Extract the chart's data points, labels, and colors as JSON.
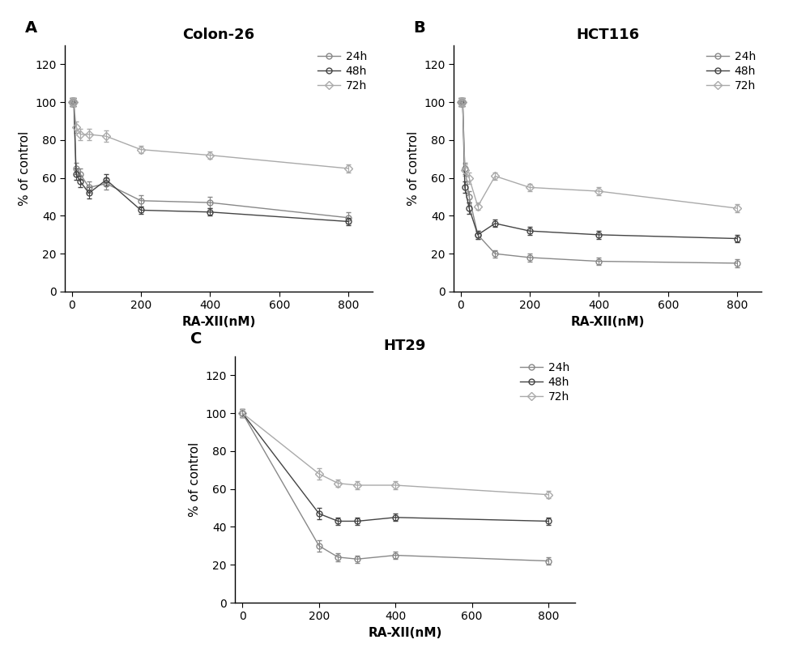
{
  "panels": [
    {
      "label": "A",
      "title": "Colon-26",
      "xlabel": "RA-XII(nM)",
      "ylabel": "% of control",
      "xlim": [
        -20,
        870
      ],
      "ylim": [
        0,
        130
      ],
      "xticks": [
        0,
        200,
        400,
        600,
        800
      ],
      "yticks": [
        0,
        20,
        40,
        60,
        80,
        100,
        120
      ],
      "series": [
        {
          "label": "24h",
          "x": [
            0,
            6.25,
            12.5,
            25,
            50,
            100,
            200,
            400,
            800
          ],
          "y": [
            100,
            100,
            65,
            62,
            55,
            57,
            48,
            47,
            39
          ],
          "yerr": [
            2,
            2,
            3,
            3,
            3,
            3,
            3,
            3,
            3
          ],
          "marker": "o",
          "markersize": 5,
          "color": "#888888",
          "linestyle": "-",
          "fillstyle": "none"
        },
        {
          "label": "48h",
          "x": [
            0,
            6.25,
            12.5,
            25,
            50,
            100,
            200,
            400,
            800
          ],
          "y": [
            100,
            100,
            62,
            58,
            52,
            59,
            43,
            42,
            37
          ],
          "yerr": [
            2,
            2,
            3,
            3,
            3,
            3,
            2,
            2,
            2
          ],
          "marker": "o",
          "markersize": 5,
          "color": "#444444",
          "linestyle": "-",
          "fillstyle": "none"
        },
        {
          "label": "72h",
          "x": [
            0,
            6.25,
            12.5,
            25,
            50,
            100,
            200,
            400,
            800
          ],
          "y": [
            100,
            100,
            87,
            83,
            83,
            82,
            75,
            72,
            65
          ],
          "yerr": [
            2,
            2,
            3,
            3,
            3,
            3,
            2,
            2,
            2
          ],
          "marker": "D",
          "markersize": 5,
          "color": "#aaaaaa",
          "linestyle": "-",
          "fillstyle": "none"
        }
      ]
    },
    {
      "label": "B",
      "title": "HCT116",
      "xlabel": "RA-XII(nM)",
      "ylabel": "% of control",
      "xlim": [
        -20,
        870
      ],
      "ylim": [
        0,
        130
      ],
      "xticks": [
        0,
        200,
        400,
        600,
        800
      ],
      "yticks": [
        0,
        20,
        40,
        60,
        80,
        100,
        120
      ],
      "series": [
        {
          "label": "24h",
          "x": [
            0,
            6.25,
            12.5,
            25,
            50,
            100,
            200,
            400,
            800
          ],
          "y": [
            100,
            100,
            65,
            50,
            30,
            20,
            18,
            16,
            15
          ],
          "yerr": [
            2,
            2,
            3,
            3,
            2,
            2,
            2,
            2,
            2
          ],
          "marker": "o",
          "markersize": 5,
          "color": "#888888",
          "linestyle": "-",
          "fillstyle": "none"
        },
        {
          "label": "48h",
          "x": [
            0,
            6.25,
            12.5,
            25,
            50,
            100,
            200,
            400,
            800
          ],
          "y": [
            100,
            100,
            55,
            44,
            30,
            36,
            32,
            30,
            28
          ],
          "yerr": [
            2,
            2,
            3,
            3,
            2,
            2,
            2,
            2,
            2
          ],
          "marker": "o",
          "markersize": 5,
          "color": "#444444",
          "linestyle": "-",
          "fillstyle": "none"
        },
        {
          "label": "72h",
          "x": [
            0,
            6.25,
            12.5,
            25,
            50,
            100,
            200,
            400,
            800
          ],
          "y": [
            100,
            100,
            64,
            60,
            45,
            61,
            55,
            53,
            44
          ],
          "yerr": [
            2,
            2,
            3,
            3,
            2,
            2,
            2,
            2,
            2
          ],
          "marker": "D",
          "markersize": 5,
          "color": "#aaaaaa",
          "linestyle": "-",
          "fillstyle": "none"
        }
      ]
    },
    {
      "label": "C",
      "title": "HT29",
      "xlabel": "RA-XII(nM)",
      "ylabel": "% of control",
      "xlim": [
        -20,
        870
      ],
      "ylim": [
        0,
        130
      ],
      "xticks": [
        0,
        200,
        400,
        600,
        800
      ],
      "yticks": [
        0,
        20,
        40,
        60,
        80,
        100,
        120
      ],
      "series": [
        {
          "label": "24h",
          "x": [
            0,
            200,
            250,
            300,
            400,
            800
          ],
          "y": [
            100,
            30,
            24,
            23,
            25,
            22
          ],
          "yerr": [
            2,
            3,
            2,
            2,
            2,
            2
          ],
          "marker": "o",
          "markersize": 5,
          "color": "#888888",
          "linestyle": "-",
          "fillstyle": "none"
        },
        {
          "label": "48h",
          "x": [
            0,
            200,
            250,
            300,
            400,
            800
          ],
          "y": [
            100,
            47,
            43,
            43,
            45,
            43
          ],
          "yerr": [
            2,
            3,
            2,
            2,
            2,
            2
          ],
          "marker": "o",
          "markersize": 5,
          "color": "#444444",
          "linestyle": "-",
          "fillstyle": "none"
        },
        {
          "label": "72h",
          "x": [
            0,
            200,
            250,
            300,
            400,
            800
          ],
          "y": [
            100,
            68,
            63,
            62,
            62,
            57
          ],
          "yerr": [
            2,
            3,
            2,
            2,
            2,
            2
          ],
          "marker": "D",
          "markersize": 5,
          "color": "#aaaaaa",
          "linestyle": "-",
          "fillstyle": "none"
        }
      ]
    }
  ],
  "background_color": "#ffffff",
  "title_fontsize": 13,
  "label_fontsize": 11,
  "tick_fontsize": 10,
  "legend_fontsize": 10,
  "panel_label_fontsize": 14
}
